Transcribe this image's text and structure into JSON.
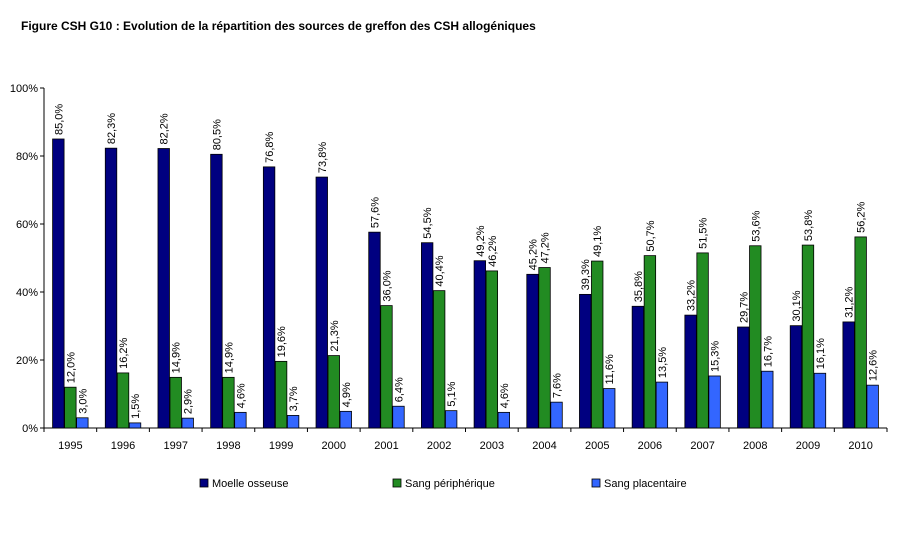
{
  "title": "Figure CSH G10 : Evolution de la répartition des sources de greffon des CSH allogéniques",
  "chart_data": {
    "type": "bar",
    "title": "Figure CSH G10 : Evolution de la répartition des sources de greffon des CSH allogéniques",
    "xlabel": "",
    "ylabel": "",
    "ylim": [
      0,
      100
    ],
    "y_ticks": [
      "0%",
      "20%",
      "40%",
      "60%",
      "80%",
      "100%"
    ],
    "grid": false,
    "legend_position": "bottom",
    "categories": [
      "1995",
      "1996",
      "1997",
      "1998",
      "1999",
      "2000",
      "2001",
      "2002",
      "2003",
      "2004",
      "2005",
      "2006",
      "2007",
      "2008",
      "2009",
      "2010"
    ],
    "series": [
      {
        "name": "Moelle osseuse",
        "color": "#000080",
        "values": [
          85.0,
          82.3,
          82.2,
          80.5,
          76.8,
          73.8,
          57.6,
          54.5,
          49.2,
          45.2,
          39.3,
          35.8,
          33.2,
          29.7,
          30.1,
          31.2
        ],
        "labels": [
          "85,0%",
          "82,3%",
          "82,2%",
          "80,5%",
          "76,8%",
          "73,8%",
          "57,6%",
          "54,5%",
          "49,2%",
          "45,2%",
          "39,3%",
          "35,8%",
          "33,2%",
          "29,7%",
          "30,1%",
          "31,2%"
        ]
      },
      {
        "name": "Sang périphérique",
        "color": "#228B22",
        "values": [
          12.0,
          16.2,
          14.9,
          14.9,
          19.6,
          21.3,
          36.0,
          40.4,
          46.2,
          47.2,
          49.1,
          50.7,
          51.5,
          53.6,
          53.8,
          56.2
        ],
        "labels": [
          "12,0%",
          "16,2%",
          "14,9%",
          "14,9%",
          "19,6%",
          "21,3%",
          "36,0%",
          "40,4%",
          "46,2%",
          "47,2%",
          "49,1%",
          "50,7%",
          "51,5%",
          "53,6%",
          "53,8%",
          "56,2%"
        ]
      },
      {
        "name": "Sang placentaire",
        "color": "#3366FF",
        "values": [
          3.0,
          1.5,
          2.9,
          4.6,
          3.7,
          4.9,
          6.4,
          5.1,
          4.6,
          7.6,
          11.6,
          13.5,
          15.3,
          16.7,
          16.1,
          12.6
        ],
        "labels": [
          "3,0%",
          "1,5%",
          "2,9%",
          "4,6%",
          "3,7%",
          "4,9%",
          "6,4%",
          "5,1%",
          "4,6%",
          "7,6%",
          "11,6%",
          "13,5%",
          "15,3%",
          "16,7%",
          "16,1%",
          "12,6%"
        ]
      }
    ]
  }
}
